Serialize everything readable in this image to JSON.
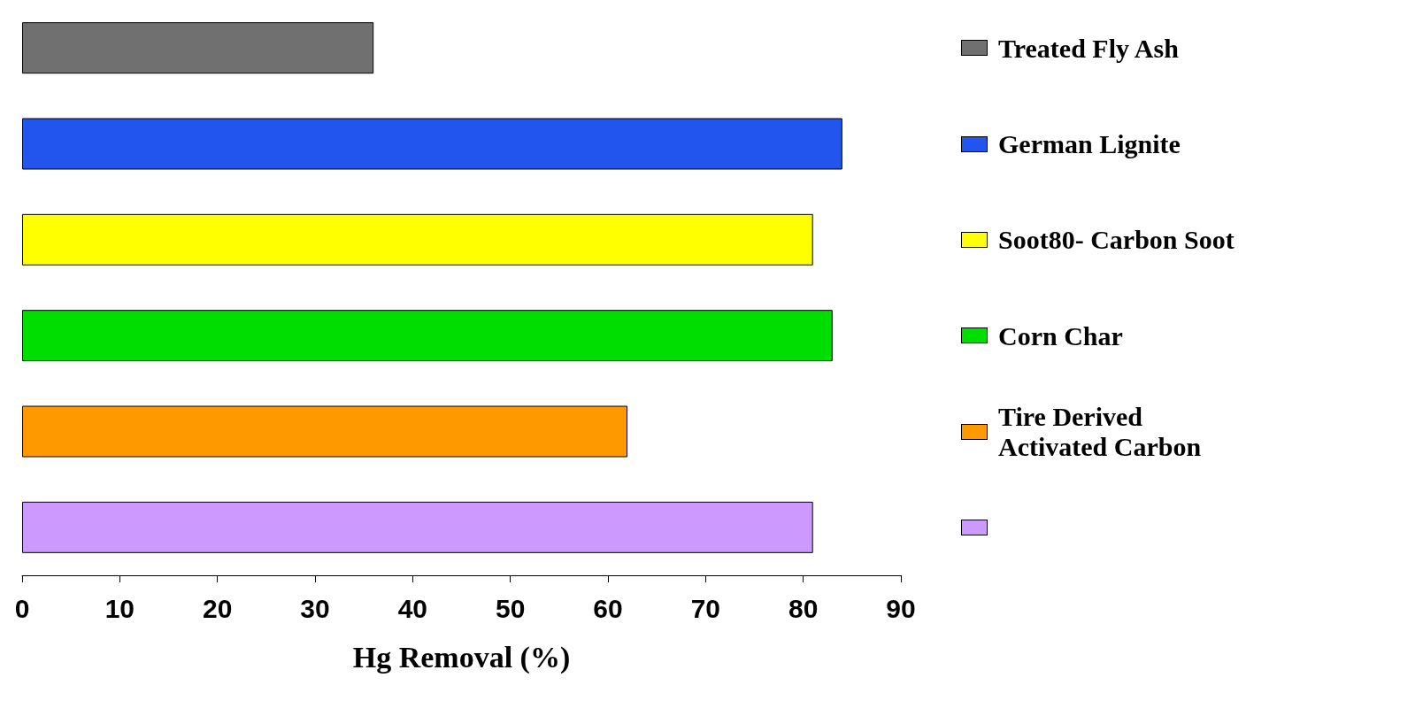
{
  "chart_data": {
    "type": "bar",
    "orientation": "horizontal",
    "xlabel": "Hg Removal (%)",
    "categories": [
      "Treated Fly Ash",
      "German Lignite",
      "Soot80- Carbon Soot",
      "Corn Char",
      "Tire Derived Activated Carbon",
      null
    ],
    "values": [
      36,
      84,
      81,
      83,
      62,
      81
    ],
    "colors": [
      "#707070",
      "#2255ee",
      "#ffff00",
      "#00dd00",
      "#ff9900",
      "#cc99ff"
    ],
    "xlim": [
      0,
      90
    ],
    "xticks": [
      0,
      10,
      20,
      30,
      40,
      50,
      60,
      70,
      80,
      90
    ],
    "grid": false
  }
}
